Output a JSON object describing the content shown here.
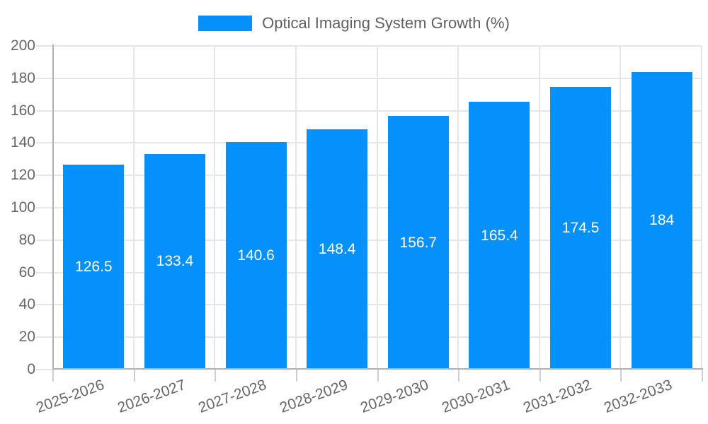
{
  "legend": {
    "label": "Optical Imaging System Growth (%)"
  },
  "chart_data": {
    "type": "bar",
    "title": "Optical Imaging System Growth (%)",
    "categories": [
      "2025-2026",
      "2026-2027",
      "2027-2028",
      "2028-2029",
      "2029-2030",
      "2030-2031",
      "2031-2032",
      "2032-2033"
    ],
    "values": [
      126.5,
      133.4,
      140.6,
      148.4,
      156.7,
      165.4,
      174.5,
      184
    ],
    "value_labels": [
      "126.5",
      "133.4",
      "140.6",
      "148.4",
      "156.7",
      "165.4",
      "174.5",
      "184"
    ],
    "ytick_labels": [
      "0",
      "20",
      "40",
      "60",
      "80",
      "100",
      "120",
      "140",
      "160",
      "180",
      "200"
    ],
    "xlabel": "",
    "ylabel": "",
    "ylim": [
      0,
      200
    ],
    "ytick_step": 20,
    "grid": true,
    "legend_position": "top",
    "value_label_position": "center-inside"
  },
  "colors": {
    "bar": "#0590fa",
    "grid": "#e6e6e6",
    "axis": "#b1b1b1",
    "tick": "#cfcfcf",
    "axis_text": "#666666",
    "legend_text": "#616161",
    "value_text": "#ffffff",
    "background": "#ffffff"
  }
}
